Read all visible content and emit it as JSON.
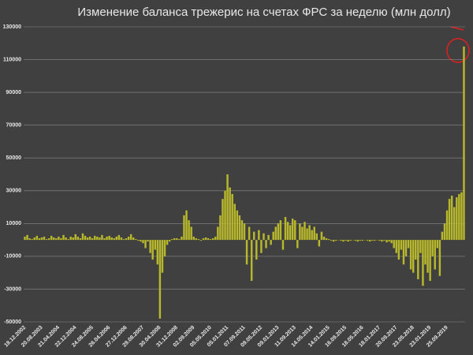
{
  "chart_data": {
    "type": "bar",
    "title": "Изменение баланса трежерис на счетах ФРС за неделю (млн долл)",
    "color": "#b8b82c",
    "grid": true,
    "ylim": [
      -50000,
      130000
    ],
    "yticks": [
      -50000,
      -30000,
      -10000,
      10000,
      30000,
      50000,
      70000,
      90000,
      110000,
      130000
    ],
    "categories": [
      "18.12.2002",
      null,
      null,
      null,
      null,
      null,
      null,
      "20.08.2003",
      null,
      null,
      null,
      null,
      null,
      null,
      "21.04.2004",
      null,
      null,
      null,
      null,
      null,
      null,
      "22.12.2004",
      null,
      null,
      null,
      null,
      null,
      null,
      "24.08.2005",
      null,
      null,
      null,
      null,
      null,
      null,
      "26.04.2006",
      null,
      null,
      null,
      null,
      null,
      null,
      "27.12.2006",
      null,
      null,
      null,
      null,
      null,
      null,
      "29.08.2007",
      null,
      null,
      null,
      null,
      null,
      null,
      "30.04.2008",
      null,
      null,
      null,
      null,
      null,
      null,
      "31.12.2008",
      null,
      null,
      null,
      null,
      null,
      null,
      "02.09.2009",
      null,
      null,
      null,
      null,
      null,
      null,
      "05.05.2010",
      null,
      null,
      null,
      null,
      null,
      null,
      "05.01.2011",
      null,
      null,
      null,
      null,
      null,
      null,
      "07.09.2011",
      null,
      null,
      null,
      null,
      null,
      null,
      "09.05.2012",
      null,
      null,
      null,
      null,
      null,
      null,
      "09.01.2013",
      null,
      null,
      null,
      null,
      null,
      null,
      "11.09.2013",
      null,
      null,
      null,
      null,
      null,
      null,
      "14.05.2014",
      null,
      null,
      null,
      null,
      null,
      null,
      "14.01.2015",
      null,
      null,
      null,
      null,
      null,
      null,
      "16.09.2015",
      null,
      null,
      null,
      null,
      null,
      null,
      "18.05.2016",
      null,
      null,
      null,
      null,
      null,
      null,
      "18.01.2017",
      null,
      null,
      null,
      null,
      null,
      null,
      "20.09.2017",
      null,
      null,
      null,
      null,
      null,
      null,
      "23.05.2018",
      null,
      null,
      null,
      null,
      null,
      null,
      "23.01.2019",
      null,
      null,
      null,
      null,
      null,
      null,
      "25.09.2019",
      null,
      null,
      null,
      null,
      null,
      null,
      null
    ],
    "values": [
      2000,
      3000,
      1000,
      500,
      1500,
      2500,
      1000,
      1500,
      2000,
      500,
      1000,
      2500,
      1500,
      1000,
      2000,
      1000,
      3000,
      1500,
      500,
      2000,
      1500,
      3500,
      2000,
      1000,
      4000,
      2500,
      1500,
      2000,
      1000,
      2500,
      2000,
      1500,
      3000,
      1000,
      2000,
      2500,
      1500,
      1000,
      2000,
      3000,
      1500,
      500,
      1000,
      2000,
      3500,
      1500,
      500,
      -500,
      -1000,
      -2000,
      -5000,
      -1000,
      -8000,
      -12000,
      -6000,
      -15000,
      -48000,
      -20000,
      -10000,
      -3000,
      -1000,
      500,
      1000,
      1000,
      500,
      2000,
      15000,
      18000,
      12000,
      8000,
      2000,
      1000,
      500,
      -500,
      1000,
      1500,
      1000,
      500,
      1000,
      2000,
      8000,
      15000,
      25000,
      30000,
      40000,
      32000,
      28000,
      22000,
      18000,
      15000,
      12000,
      10000,
      -15000,
      8000,
      -25000,
      5000,
      -12000,
      6000,
      -8000,
      4000,
      -5000,
      3000,
      -3000,
      5000,
      8000,
      10000,
      12000,
      -6000,
      14000,
      11000,
      9000,
      13000,
      12000,
      -5000,
      10000,
      8000,
      11000,
      7000,
      9000,
      6000,
      8000,
      4000,
      -4000,
      5000,
      2000,
      1000,
      500,
      -500,
      -1000,
      -500,
      0,
      -500,
      -1000,
      -500,
      -1000,
      -500,
      0,
      -500,
      -1000,
      -500,
      -500,
      0,
      -500,
      -1000,
      -500,
      -500,
      0,
      -500,
      -1000,
      -500,
      -1500,
      -1000,
      -2000,
      -5000,
      -8000,
      -12000,
      -6000,
      -15000,
      -10000,
      -5000,
      -18000,
      -20000,
      -12000,
      -24000,
      -8000,
      -28000,
      -15000,
      -20000,
      -25000,
      -10000,
      -18000,
      -5000,
      -22000,
      5000,
      10000,
      18000,
      25000,
      27000,
      20000,
      26000,
      28000,
      29000,
      118000
    ]
  }
}
